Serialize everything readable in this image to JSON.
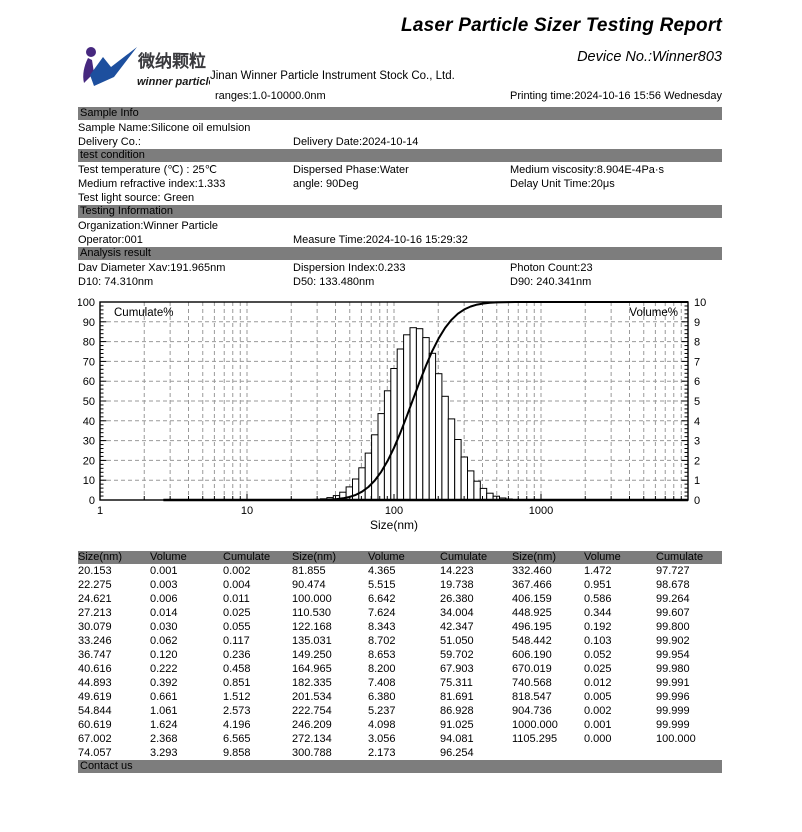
{
  "report": {
    "title": "Laser Particle Sizer Testing Report",
    "device_no": "Device No.:Winner803",
    "company": "Jinan Winner Particle Instrument Stock Co., Ltd.",
    "ranges": "ranges:1.0-10000.0nm",
    "printing_time": "Printing time:2024-10-16 15:56 Wednesday",
    "logo_cn": "微纳颗粒",
    "logo_en": "winner particle",
    "logo_colors": {
      "purple": "#46287f",
      "blue": "#1d4f9e",
      "text_dark": "#3a3a3e"
    }
  },
  "sections": {
    "sample_info": {
      "title": "Sample Info",
      "rows": [
        [
          "Sample Name:Silicone oil emulsion"
        ],
        [
          "Delivery Co.:",
          "Delivery Date:2024-10-14"
        ]
      ]
    },
    "test_condition": {
      "title": "test condition",
      "rows": [
        [
          "Test temperature (℃) : 25℃",
          "Dispersed Phase:Water",
          "Medium viscosity:8.904E-4Pa·s"
        ],
        [
          "Medium refractive index:1.333",
          "angle: 90Deg",
          "Delay Unit Time:20μs"
        ],
        [
          "Test light source:  Green"
        ]
      ]
    },
    "testing_information": {
      "title": "Testing Information",
      "rows": [
        [
          "Organization:Winner Particle"
        ],
        [
          "Operator:001",
          "Measure Time:2024-10-16 15:29:32"
        ]
      ]
    },
    "analysis_result": {
      "title": "Analysis result",
      "rows": [
        [
          "Dav Diameter Xav:191.965nm",
          "Dispersion Index:0.233",
          "Photon Count:23"
        ],
        [
          "D10:  74.310nm",
          "D50:  133.480nm",
          "D90:  240.341nm"
        ]
      ]
    },
    "contact": {
      "title": "Contact us"
    }
  },
  "chart_data": {
    "type": "bar",
    "title": "",
    "xlabel": "Size(nm)",
    "x_scale": "log",
    "x_range": [
      1,
      10000
    ],
    "x_ticks": [
      1,
      10,
      100,
      1000
    ],
    "x_tick_labels": [
      "1",
      "10",
      "100",
      "1000"
    ],
    "left_axis": {
      "label": "Cumulate%",
      "range": [
        0,
        100
      ],
      "tick_step": 10
    },
    "right_axis": {
      "label": "Volume%",
      "range": [
        0,
        10
      ],
      "tick_step": 1
    },
    "grid": "dashed",
    "legend_position": "inside-top",
    "curve_baseline_start": 2.7,
    "series": [
      {
        "name": "Volume%",
        "type": "bar",
        "axis": "right",
        "x": [
          20.153,
          22.275,
          24.621,
          27.213,
          30.079,
          33.246,
          36.747,
          40.616,
          44.893,
          49.619,
          54.844,
          60.619,
          67.002,
          74.057,
          81.855,
          90.474,
          100.0,
          110.53,
          122.168,
          135.031,
          149.25,
          164.965,
          182.335,
          201.534,
          222.754,
          246.209,
          272.134,
          300.788,
          332.46,
          367.466,
          406.159,
          448.925,
          496.195,
          548.442,
          606.19,
          670.019,
          740.568,
          818.547,
          904.736,
          1000.0,
          1105.295
        ],
        "values": [
          0.001,
          0.003,
          0.006,
          0.014,
          0.03,
          0.062,
          0.12,
          0.222,
          0.392,
          0.661,
          1.061,
          1.624,
          2.368,
          3.293,
          4.365,
          5.515,
          6.642,
          7.624,
          8.343,
          8.702,
          8.653,
          8.2,
          7.408,
          6.38,
          5.237,
          4.098,
          3.056,
          2.173,
          1.472,
          0.951,
          0.586,
          0.344,
          0.192,
          0.103,
          0.052,
          0.025,
          0.012,
          0.005,
          0.002,
          0.001,
          0.0
        ]
      },
      {
        "name": "Cumulate%",
        "type": "line",
        "axis": "left",
        "x": [
          20.153,
          22.275,
          24.621,
          27.213,
          30.079,
          33.246,
          36.747,
          40.616,
          44.893,
          49.619,
          54.844,
          60.619,
          67.002,
          74.057,
          81.855,
          90.474,
          100.0,
          110.53,
          122.168,
          135.031,
          149.25,
          164.965,
          182.335,
          201.534,
          222.754,
          246.209,
          272.134,
          300.788,
          332.46,
          367.466,
          406.159,
          448.925,
          496.195,
          548.442,
          606.19,
          670.019,
          740.568,
          818.547,
          904.736,
          1000.0,
          1105.295
        ],
        "values": [
          0.002,
          0.004,
          0.011,
          0.025,
          0.055,
          0.117,
          0.236,
          0.458,
          0.851,
          1.512,
          2.573,
          4.196,
          6.565,
          9.858,
          14.223,
          19.738,
          26.38,
          34.004,
          42.347,
          51.05,
          59.702,
          67.903,
          75.311,
          81.691,
          86.928,
          91.025,
          94.081,
          96.254,
          97.727,
          98.678,
          99.264,
          99.607,
          99.8,
          99.902,
          99.954,
          99.98,
          99.991,
          99.996,
          99.999,
          99.999,
          100.0
        ]
      }
    ]
  },
  "table": {
    "headers": [
      "Size(nm)",
      "Volume",
      "Cumulate"
    ],
    "groups": 3,
    "rows_per_group": 14
  }
}
